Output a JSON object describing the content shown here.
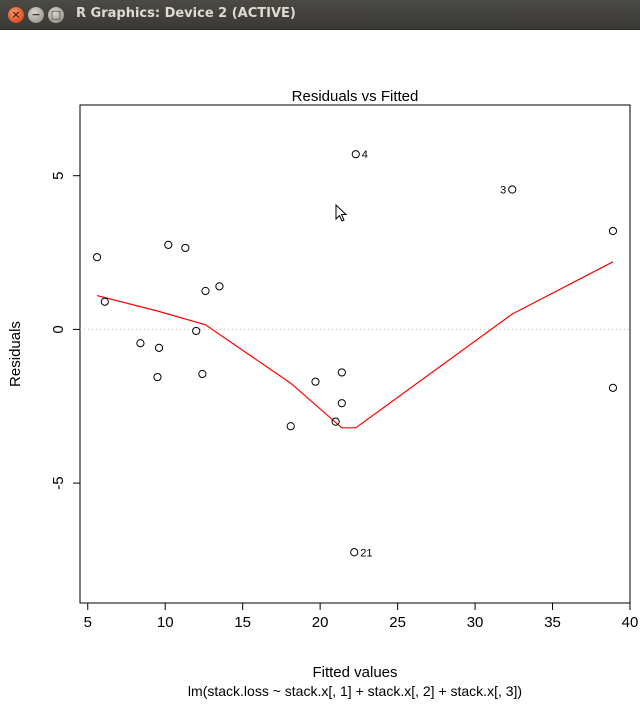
{
  "window": {
    "title": "R Graphics: Device 2 (ACTIVE)",
    "close_glyph": "×",
    "minimize_glyph": "−",
    "maximize_glyph": "□"
  },
  "chart_data": {
    "type": "scatter",
    "title": "Residuals vs Fitted",
    "xlabel": "Fitted values",
    "ylabel": "Residuals",
    "subtitle": "lm(stack.loss ~ stack.x[, 1] + stack.x[, 2] + stack.x[, 3])",
    "xlim": [
      4.5,
      40
    ],
    "ylim": [
      -8.9,
      7.3
    ],
    "xticks": [
      5,
      10,
      15,
      20,
      25,
      30,
      35,
      40
    ],
    "yticks": [
      -5,
      0,
      5
    ],
    "points": [
      {
        "x": 38.9,
        "y": 3.2,
        "label": ""
      },
      {
        "x": 38.9,
        "y": -1.9,
        "label": ""
      },
      {
        "x": 32.4,
        "y": 4.55,
        "label": "3"
      },
      {
        "x": 22.3,
        "y": 5.7,
        "label": "4"
      },
      {
        "x": 6.1,
        "y": 0.9,
        "label": ""
      },
      {
        "x": 5.6,
        "y": 2.35,
        "label": ""
      },
      {
        "x": 9.6,
        "y": -0.6,
        "label": ""
      },
      {
        "x": 9.5,
        "y": -1.55,
        "label": ""
      },
      {
        "x": 8.4,
        "y": -0.45,
        "label": ""
      },
      {
        "x": 10.2,
        "y": 2.75,
        "label": ""
      },
      {
        "x": 11.3,
        "y": 2.65,
        "label": ""
      },
      {
        "x": 12.0,
        "y": -0.05,
        "label": ""
      },
      {
        "x": 12.4,
        "y": -1.45,
        "label": ""
      },
      {
        "x": 12.6,
        "y": 1.25,
        "label": ""
      },
      {
        "x": 13.5,
        "y": 1.4,
        "label": ""
      },
      {
        "x": 18.1,
        "y": -3.15,
        "label": ""
      },
      {
        "x": 19.7,
        "y": -1.7,
        "label": ""
      },
      {
        "x": 21.0,
        "y": -3.0,
        "label": ""
      },
      {
        "x": 21.4,
        "y": -2.4,
        "label": ""
      },
      {
        "x": 21.4,
        "y": -1.4,
        "label": ""
      },
      {
        "x": 22.2,
        "y": -7.25,
        "label": "21"
      }
    ],
    "smooth_line": {
      "color": "#ff0000",
      "x": [
        5.6,
        9.5,
        12.6,
        18.1,
        21.4,
        22.3,
        32.4,
        38.9
      ],
      "y": [
        1.1,
        0.6,
        0.15,
        -1.75,
        -3.2,
        -3.2,
        0.5,
        2.2
      ]
    },
    "reference_line": {
      "y": 0,
      "style": "dotted",
      "color": "#bbbbbb"
    }
  }
}
